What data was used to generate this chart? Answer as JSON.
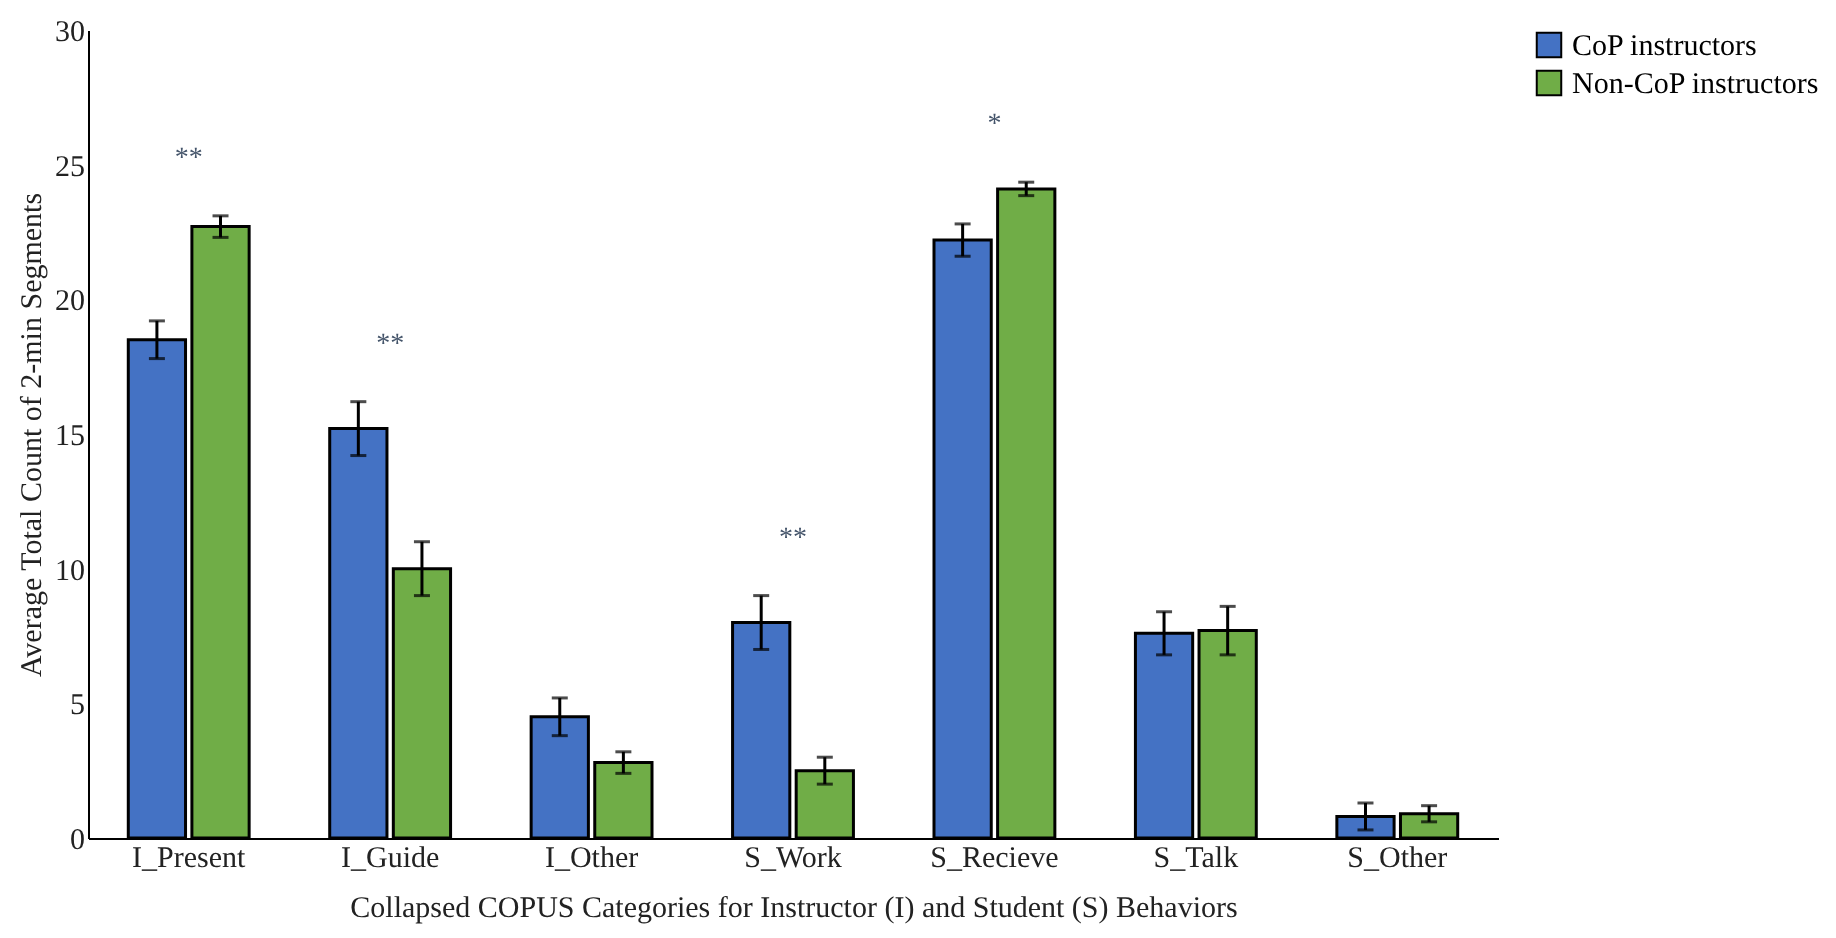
{
  "chart_data": {
    "type": "bar",
    "xlabel": "Collapsed COPUS Categories for Instructor (I) and Student (S) Behaviors",
    "ylabel": "Average Total Count of 2-min Segments",
    "categories": [
      "I_Present",
      "I_Guide",
      "I_Other",
      "S_Work",
      "S_Recieve",
      "S_Talk",
      "S_Other"
    ],
    "series": [
      {
        "name": "CoP instructors",
        "color": "#4472c4",
        "values": [
          18.5,
          15.2,
          4.5,
          8.0,
          22.2,
          7.6,
          0.8
        ],
        "errors": [
          0.7,
          1.0,
          0.7,
          1.0,
          0.6,
          0.8,
          0.5
        ]
      },
      {
        "name": "Non-CoP instructors",
        "color": "#70ad47",
        "values": [
          22.7,
          10.0,
          2.8,
          2.5,
          24.1,
          7.7,
          0.9
        ],
        "errors": [
          0.4,
          1.0,
          0.4,
          0.5,
          0.25,
          0.9,
          0.3
        ]
      }
    ],
    "ylim": [
      0,
      30
    ],
    "yticks": [
      0,
      5,
      10,
      15,
      20,
      25,
      30
    ],
    "annotations": [
      "**",
      "**",
      "**",
      "*"
    ],
    "grid": false,
    "legend": "right"
  }
}
